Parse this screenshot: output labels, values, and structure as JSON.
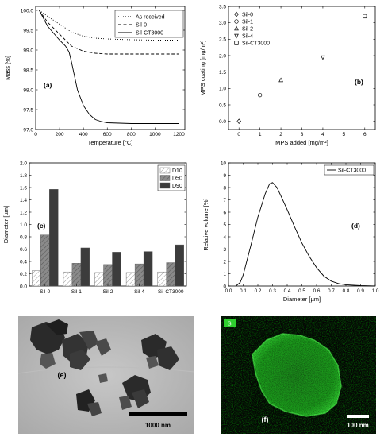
{
  "chart_data": [
    {
      "panel": "a",
      "type": "line",
      "panel_label": "(a)",
      "xlabel": "Temperature [°C]",
      "ylabel": "Mass [%]",
      "xlim": [
        0,
        1250
      ],
      "ylim": [
        97.0,
        100.1
      ],
      "xticks": [
        0,
        200,
        400,
        600,
        800,
        1000,
        1200
      ],
      "yticks": [
        97.0,
        97.5,
        98.0,
        98.5,
        99.0,
        99.5,
        100.0
      ],
      "legend_position": "top-right",
      "series": [
        {
          "name": "As received",
          "style": "dotted",
          "x": [
            30,
            100,
            200,
            300,
            400,
            500,
            600,
            800,
            1000,
            1200
          ],
          "y": [
            100.0,
            99.85,
            99.65,
            99.45,
            99.35,
            99.3,
            99.28,
            99.26,
            99.25,
            99.25
          ]
        },
        {
          "name": "Sil-0",
          "style": "dashed",
          "x": [
            30,
            100,
            200,
            300,
            400,
            500,
            600,
            800,
            1000,
            1200
          ],
          "y": [
            100.0,
            99.7,
            99.4,
            99.1,
            98.97,
            98.92,
            98.9,
            98.9,
            98.9,
            98.9
          ]
        },
        {
          "name": "Sil-CT3000",
          "style": "solid",
          "x": [
            30,
            100,
            200,
            250,
            280,
            300,
            350,
            400,
            450,
            500,
            550,
            600,
            700,
            800,
            1000,
            1200
          ],
          "y": [
            100.0,
            99.6,
            99.25,
            99.1,
            98.95,
            98.7,
            98.0,
            97.6,
            97.38,
            97.25,
            97.2,
            97.17,
            97.16,
            97.15,
            97.15,
            97.15
          ]
        }
      ]
    },
    {
      "panel": "b",
      "type": "scatter",
      "panel_label": "(b)",
      "xlabel": "MPS added [mg/m²]",
      "ylabel": "MPS coating [mg/m²]",
      "xlim": [
        -0.5,
        6.5
      ],
      "ylim": [
        -0.25,
        3.5
      ],
      "xticks": [
        0,
        1,
        2,
        3,
        4,
        5,
        6
      ],
      "yticks": [
        0.0,
        0.5,
        1.0,
        1.5,
        2.0,
        2.5,
        3.0,
        3.5
      ],
      "legend_position": "top-left",
      "points": [
        {
          "name": "Sil-0",
          "marker": "diamond",
          "x": 0,
          "y": 0.0
        },
        {
          "name": "Sil-1",
          "marker": "circle",
          "x": 1,
          "y": 0.8
        },
        {
          "name": "Sil-2",
          "marker": "triangle-up",
          "x": 2,
          "y": 1.25
        },
        {
          "name": "Sil-4",
          "marker": "triangle-down",
          "x": 4,
          "y": 1.95
        },
        {
          "name": "Sil-CT3000",
          "marker": "square",
          "x": 6,
          "y": 3.2
        }
      ]
    },
    {
      "panel": "c",
      "type": "bar",
      "panel_label": "(c)",
      "xlabel": "",
      "ylabel": "Diameter [µm]",
      "ylim": [
        0,
        2.0
      ],
      "yticks": [
        0.0,
        0.2,
        0.4,
        0.6,
        0.8,
        1.0,
        1.2,
        1.4,
        1.6,
        1.8,
        2.0
      ],
      "legend_position": "top-right",
      "categories": [
        "Sil-0",
        "Sil-1",
        "Sil-2",
        "Sil-4",
        "Sil-CT3000"
      ],
      "series": [
        {
          "name": "D10",
          "color": "#ffffff",
          "pattern": "hatch-light",
          "values": [
            0.25,
            0.23,
            0.22,
            0.22,
            0.23
          ]
        },
        {
          "name": "D50",
          "color": "#8c8c8c",
          "pattern": "hatch-dark",
          "values": [
            0.83,
            0.37,
            0.35,
            0.36,
            0.38
          ]
        },
        {
          "name": "D90",
          "color": "#3c3c3c",
          "pattern": "solid",
          "values": [
            1.57,
            0.62,
            0.55,
            0.56,
            0.67
          ]
        }
      ]
    },
    {
      "panel": "d",
      "type": "line",
      "panel_label": "(d)",
      "xlabel": "Diameter [µm]",
      "ylabel": "Relative volume [%]",
      "xlim": [
        0,
        1.0
      ],
      "ylim": [
        0,
        10
      ],
      "xticks": [
        0.0,
        0.1,
        0.2,
        0.3,
        0.4,
        0.5,
        0.6,
        0.7,
        0.8,
        0.9,
        1.0
      ],
      "yticks": [
        0,
        1,
        2,
        3,
        4,
        5,
        6,
        7,
        8,
        9,
        10
      ],
      "legend_position": "top-right",
      "series": [
        {
          "name": "Sil-CT3000",
          "style": "solid",
          "x": [
            0.05,
            0.08,
            0.1,
            0.15,
            0.2,
            0.25,
            0.28,
            0.3,
            0.33,
            0.35,
            0.4,
            0.45,
            0.5,
            0.55,
            0.6,
            0.65,
            0.7,
            0.75,
            0.8,
            0.9,
            1.0
          ],
          "y": [
            0.0,
            0.3,
            0.9,
            3.2,
            5.6,
            7.5,
            8.3,
            8.4,
            8.0,
            7.5,
            6.2,
            4.8,
            3.5,
            2.4,
            1.5,
            0.8,
            0.4,
            0.2,
            0.1,
            0.03,
            0.0
          ]
        }
      ]
    }
  ],
  "images": {
    "tem": {
      "panel_label": "(e)",
      "scale_label": "1000 nm"
    },
    "eds": {
      "panel_label": "(f)",
      "scale_label": "100 nm",
      "element_label": "Si"
    }
  }
}
